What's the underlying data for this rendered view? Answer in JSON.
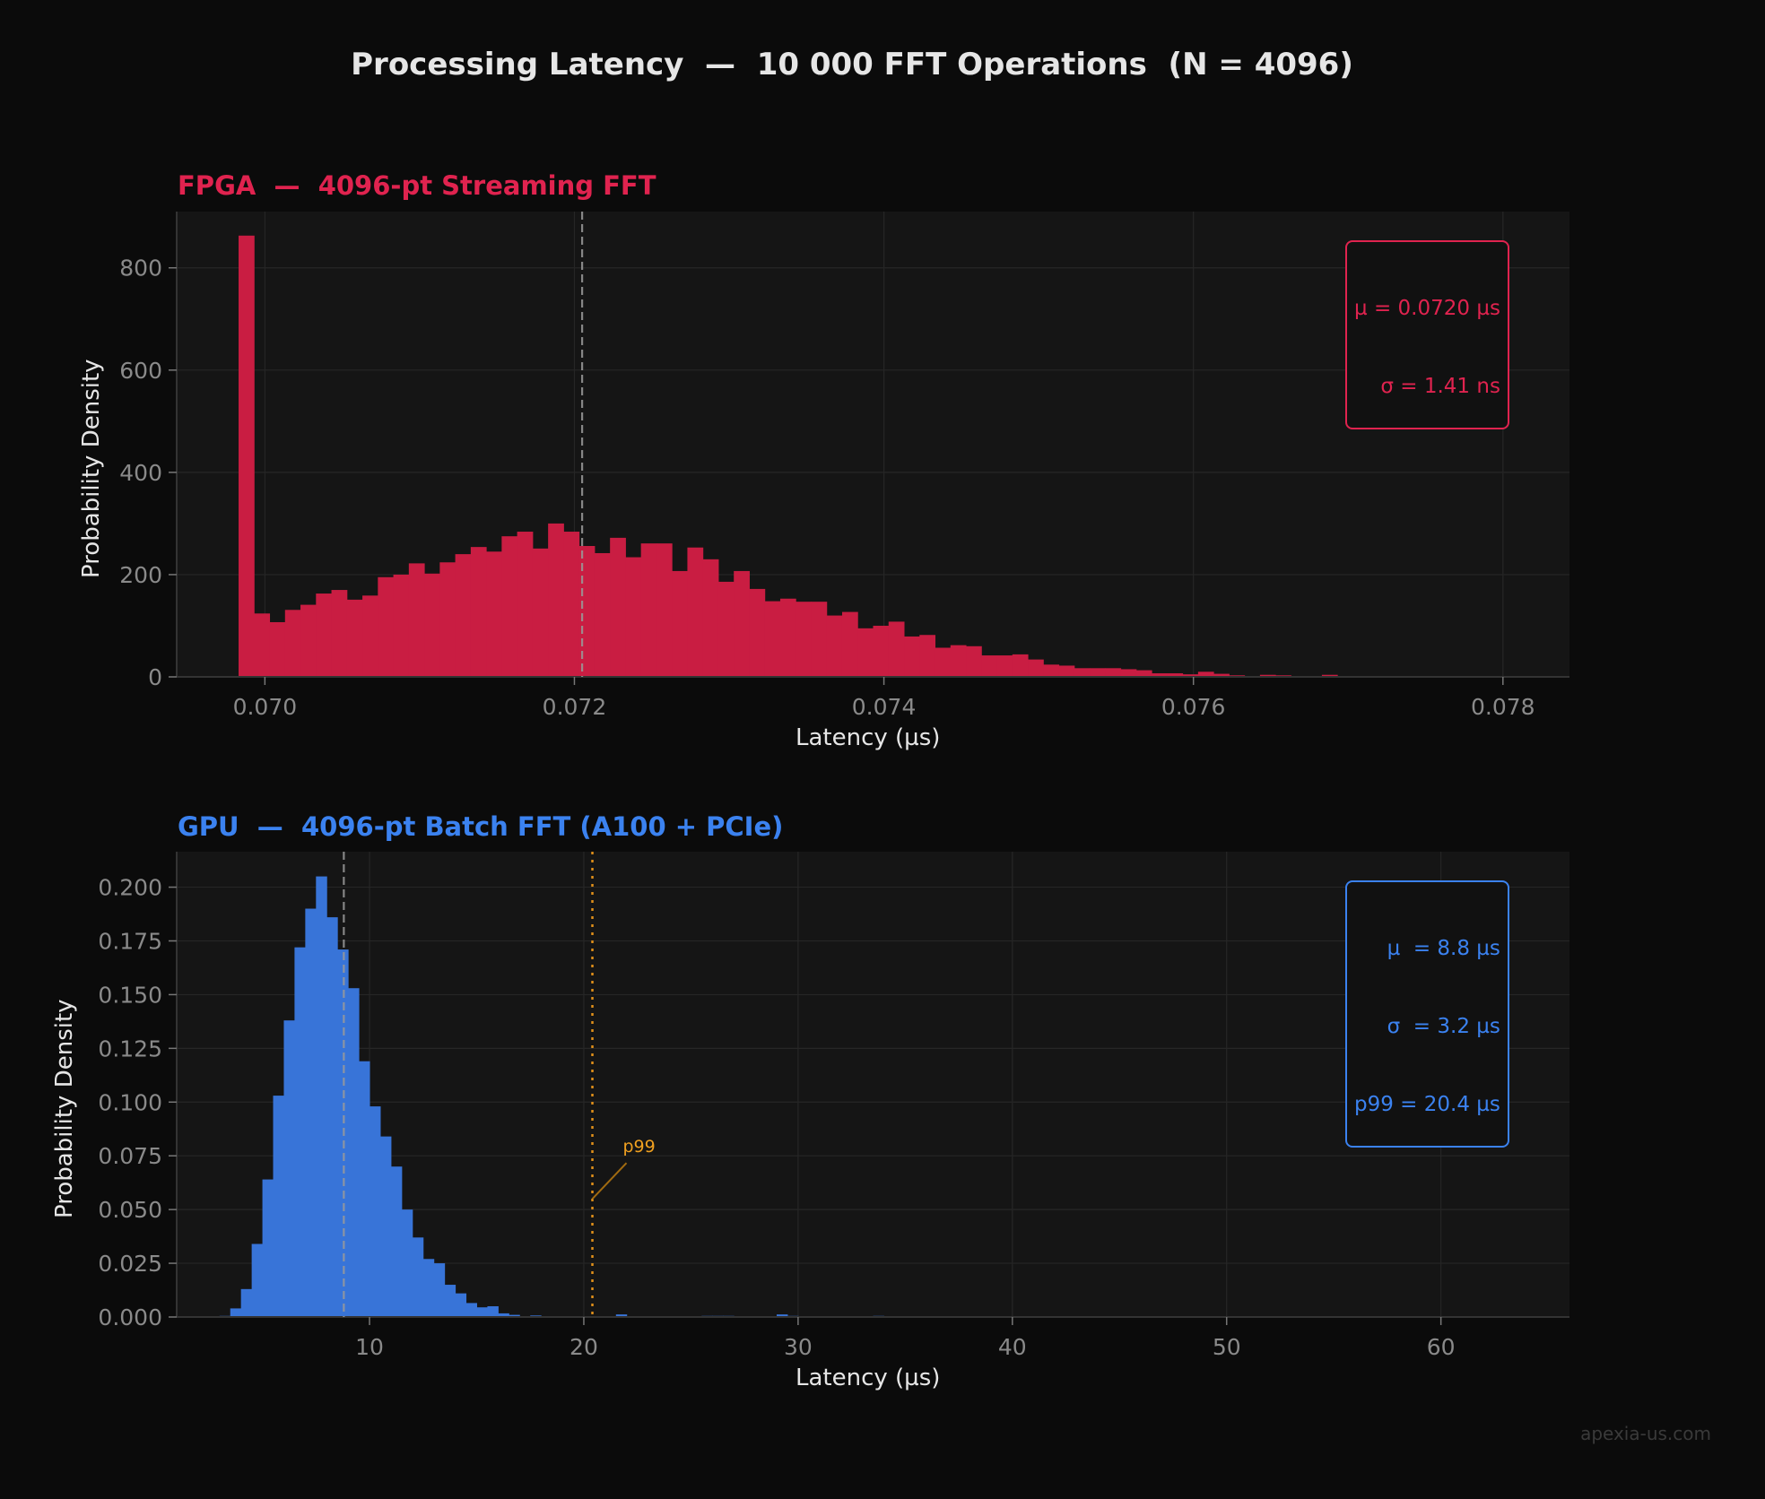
{
  "title": "Processing Latency  —  10 000 FFT Operations  (N = 4096)",
  "watermark": "apexia-us.com",
  "colors": {
    "background": "#0b0b0b",
    "plot_background": "#151515",
    "fpga": "#c91d42",
    "fpga_text": "#e0234f",
    "gpu": "#3874d8",
    "gpu_text": "#3b82f0",
    "p99": "#e0901a",
    "mean_line": "#9a9a9a",
    "tick_text": "#8a8a8a"
  },
  "fpga": {
    "title": "FPGA  —  4096-pt Streaming FFT",
    "xlabel": "Latency (µs)",
    "ylabel": "Probability Density",
    "stats": {
      "line1": "µ = 0.0720 µs",
      "line2": "σ = 1.41 ns"
    }
  },
  "gpu": {
    "title": "GPU  —  4096-pt Batch FFT (A100 + PCIe)",
    "xlabel": "Latency (µs)",
    "ylabel": "Probability Density",
    "stats": {
      "line1": "µ  = 8.8 µs",
      "line2": "σ  = 3.2 µs",
      "line3": "p99 = 20.4 µs"
    },
    "p99_label": "p99"
  },
  "chart_data": [
    {
      "type": "bar",
      "title": "FPGA  —  4096-pt Streaming FFT",
      "xlabel": "Latency (µs)",
      "ylabel": "Probability Density",
      "xlim": [
        0.06943,
        0.07843
      ],
      "ylim": [
        0,
        910
      ],
      "xticks": [
        0.07,
        0.072,
        0.074,
        0.076,
        0.078
      ],
      "xtick_labels": [
        "0.070",
        "0.072",
        "0.074",
        "0.076",
        "0.078"
      ],
      "yticks": [
        0,
        200,
        400,
        600,
        800
      ],
      "ytick_labels": [
        "0",
        "200",
        "400",
        "600",
        "800"
      ],
      "grid": true,
      "bin_start": 0.06983,
      "bin_width": 0.0001,
      "values": [
        863,
        124,
        107,
        131,
        141,
        163,
        170,
        151,
        159,
        195,
        200,
        222,
        202,
        224,
        240,
        254,
        245,
        275,
        284,
        251,
        300,
        284,
        256,
        242,
        272,
        234,
        261,
        261,
        207,
        253,
        230,
        186,
        207,
        172,
        148,
        153,
        147,
        147,
        120,
        127,
        95,
        100,
        108,
        79,
        82,
        57,
        62,
        60,
        42,
        42,
        44,
        34,
        24,
        22,
        17,
        17,
        17,
        15,
        13,
        7,
        7,
        5,
        10,
        6,
        3,
        0,
        4,
        3,
        0,
        0,
        4
      ],
      "mean_line": 0.07205,
      "annotations": [
        "µ = 0.0720 µs",
        "σ = 1.41 ns"
      ]
    },
    {
      "type": "bar",
      "title": "GPU  —  4096-pt Batch FFT (A100 + PCIe)",
      "xlabel": "Latency (µs)",
      "ylabel": "Probability Density",
      "xlim": [
        1.0,
        66.0
      ],
      "ylim": [
        0,
        0.2165
      ],
      "xticks": [
        10,
        20,
        30,
        40,
        50,
        60
      ],
      "xtick_labels": [
        "10",
        "20",
        "30",
        "40",
        "50",
        "60"
      ],
      "yticks": [
        0.0,
        0.025,
        0.05,
        0.075,
        0.1,
        0.125,
        0.15,
        0.175,
        0.2
      ],
      "ytick_labels": [
        "0.000",
        "0.025",
        "0.050",
        "0.075",
        "0.100",
        "0.125",
        "0.150",
        "0.175",
        "0.200"
      ],
      "grid": true,
      "bin_start": 3.0,
      "bin_width": 0.5,
      "values": [
        0.0005,
        0.004,
        0.013,
        0.034,
        0.064,
        0.103,
        0.138,
        0.172,
        0.19,
        0.205,
        0.186,
        0.171,
        0.153,
        0.119,
        0.098,
        0.084,
        0.07,
        0.05,
        0.037,
        0.027,
        0.025,
        0.015,
        0.011,
        0.0065,
        0.0045,
        0.005,
        0.0017,
        0.001,
        0.0003,
        0.0007,
        0.0003,
        0,
        0,
        0,
        0,
        0,
        0,
        0.0012,
        0,
        0,
        0,
        0,
        0,
        0,
        0,
        0.0005,
        0.0005,
        0.0005,
        0,
        0,
        0,
        0,
        0.0012,
        0.0005,
        0,
        0,
        0,
        0,
        0,
        0,
        0,
        0.0005
      ],
      "mean_line": 8.8,
      "p99_line": 20.4,
      "annotations": [
        "µ  = 8.8 µs",
        "σ  = 3.2 µs",
        "p99 = 20.4 µs",
        "p99"
      ]
    }
  ]
}
